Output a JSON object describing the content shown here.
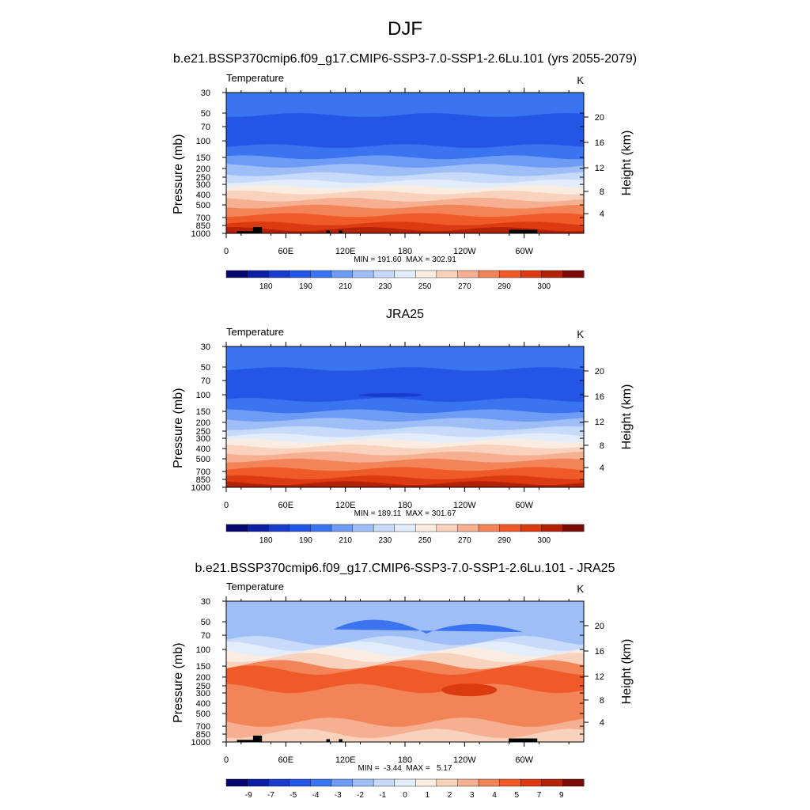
{
  "figure": {
    "main_title": "DJF"
  },
  "colors": {
    "temperature_palette": [
      "#06066e",
      "#0d1fa3",
      "#1a3ccc",
      "#2456e6",
      "#3a74f0",
      "#6e9cf5",
      "#9fbef8",
      "#c7daf9",
      "#e2ecfb",
      "#fbece2",
      "#f9d2bd",
      "#f6b091",
      "#f28457",
      "#f05a28",
      "#dc3a10",
      "#b32109",
      "#7a0b06"
    ],
    "temperature_levels": [
      "180",
      "190",
      "210",
      "230",
      "250",
      "270",
      "290",
      "300"
    ],
    "difference_palette": [
      "#06066e",
      "#0d1fa3",
      "#1a3ccc",
      "#2456e6",
      "#3a74f0",
      "#6e9cf5",
      "#9fbef8",
      "#c7daf9",
      "#e2ecfb",
      "#fbece2",
      "#f9d2bd",
      "#f6b091",
      "#f28457",
      "#f05a28",
      "#dc3a10",
      "#b32109",
      "#7a0b06"
    ],
    "terrain": "#000000"
  },
  "chart_data": [
    {
      "type": "heatmap",
      "title": "b.e21.BSSP370cmip6.f09_g17.CMIP6-SSP3-7.0-SSP1-2.6Lu.101 (yrs 2055-2079)",
      "variable_label": "Temperature",
      "units": "K",
      "ylabel": "Pressure (mb)",
      "ylabel_right": "Height (km)",
      "x_ticks": [
        "0",
        "60E",
        "120E",
        "180",
        "120W",
        "60W"
      ],
      "y_ticks": [
        "30",
        "50",
        "70",
        "100",
        "150",
        "200",
        "250",
        "300",
        "400",
        "500",
        "700",
        "850",
        "1000"
      ],
      "y_ticks_right": [
        "20",
        "16",
        "12",
        "8",
        "4"
      ],
      "stats": "MIN = 191.60  MAX = 302.91",
      "min": 191.6,
      "max": 302.91,
      "colorbar_labels": [
        "180",
        "190",
        "210",
        "230",
        "250",
        "270",
        "290",
        "300"
      ],
      "terrain_mask": true
    },
    {
      "type": "heatmap",
      "title": "JRA25",
      "variable_label": "Temperature",
      "units": "K",
      "ylabel": "Pressure (mb)",
      "ylabel_right": "Height (km)",
      "x_ticks": [
        "0",
        "60E",
        "120E",
        "180",
        "120W",
        "60W"
      ],
      "y_ticks": [
        "30",
        "50",
        "70",
        "100",
        "150",
        "200",
        "250",
        "300",
        "400",
        "500",
        "700",
        "850",
        "1000"
      ],
      "y_ticks_right": [
        "20",
        "16",
        "12",
        "8",
        "4"
      ],
      "stats": "MIN = 189.11  MAX = 301.67",
      "min": 189.11,
      "max": 301.67,
      "colorbar_labels": [
        "180",
        "190",
        "210",
        "230",
        "250",
        "270",
        "290",
        "300"
      ],
      "terrain_mask": false
    },
    {
      "type": "heatmap",
      "title": "b.e21.BSSP370cmip6.f09_g17.CMIP6-SSP3-7.0-SSP1-2.6Lu.101 - JRA25",
      "variable_label": "Temperature",
      "units": "K",
      "ylabel": "Pressure (mb)",
      "ylabel_right": "Height (km)",
      "x_ticks": [
        "0",
        "60E",
        "120E",
        "180",
        "120W",
        "60W"
      ],
      "y_ticks": [
        "30",
        "50",
        "70",
        "100",
        "150",
        "200",
        "250",
        "300",
        "400",
        "500",
        "700",
        "850",
        "1000"
      ],
      "y_ticks_right": [
        "20",
        "16",
        "12",
        "8",
        "4"
      ],
      "stats": "MIN =  -3.44  MAX =   5.17",
      "min": -3.44,
      "max": 5.17,
      "colorbar_labels": [
        "-9",
        "-7",
        "-5",
        "-4",
        "-3",
        "-2",
        "-1",
        "0",
        "1",
        "2",
        "3",
        "4",
        "5",
        "7",
        "9"
      ],
      "terrain_mask": true
    }
  ]
}
